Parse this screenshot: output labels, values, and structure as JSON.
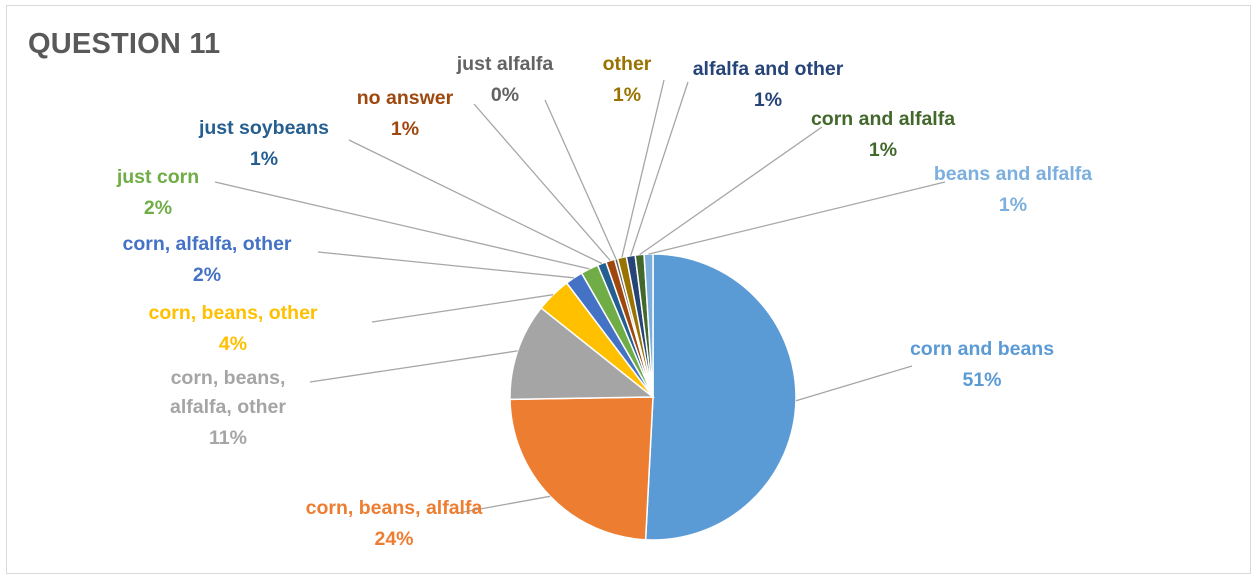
{
  "chart_data": {
    "type": "pie",
    "title": "QUESTION 11",
    "slices": [
      {
        "label": "corn and beans",
        "value": 51,
        "display": "51%",
        "color": "#5b9bd5"
      },
      {
        "label": "corn, beans, alfalfa",
        "value": 24,
        "display": "24%",
        "color": "#ed7d31"
      },
      {
        "label": "corn, beans, alfalfa, other",
        "lines": [
          "corn, beans,",
          "alfalfa, other"
        ],
        "value": 11,
        "display": "11%",
        "color": "#a5a5a5"
      },
      {
        "label": "corn, beans, other",
        "value": 4,
        "display": "4%",
        "color": "#ffc000"
      },
      {
        "label": "corn, alfalfa, other",
        "value": 2,
        "display": "2%",
        "color": "#4472c4"
      },
      {
        "label": "just corn",
        "value": 2,
        "display": "2%",
        "color": "#70ad47"
      },
      {
        "label": "just soybeans",
        "value": 1,
        "display": "1%",
        "color": "#255e91"
      },
      {
        "label": "no answer",
        "value": 1,
        "display": "1%",
        "color": "#9e480e"
      },
      {
        "label": "just alfalfa",
        "value": 0,
        "display": "0%",
        "color": "#636363"
      },
      {
        "label": "other",
        "value": 1,
        "display": "1%",
        "color": "#997300"
      },
      {
        "label": "alfalfa and other",
        "value": 1,
        "display": "1%",
        "color": "#264478"
      },
      {
        "label": "corn and alfalfa",
        "value": 1,
        "display": "1%",
        "color": "#43682b"
      },
      {
        "label": "beans and alfalfa",
        "value": 1,
        "display": "1%",
        "color": "#7cafdd"
      }
    ]
  }
}
